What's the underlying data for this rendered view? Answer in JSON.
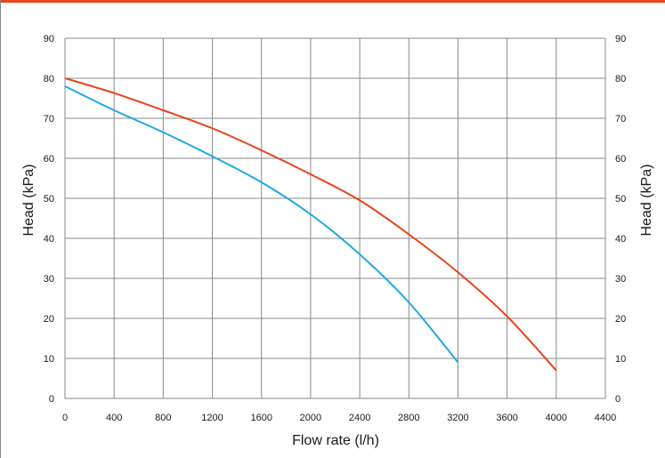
{
  "colors": {
    "accent_bar": "#e9431c",
    "grid": "#8a8a8a",
    "series_red": "#e9431c",
    "series_blue": "#1fa9e0"
  },
  "chart_data": {
    "type": "line",
    "xlabel": "Flow rate (l/h)",
    "ylabel": "Head (kPa)",
    "ylabel_right": "Head (kPa)",
    "xlim": [
      0,
      4400
    ],
    "ylim": [
      0,
      90
    ],
    "x_ticks": [
      "0",
      "400",
      "800",
      "1200",
      "1600",
      "2000",
      "2400",
      "2800",
      "3200",
      "3600",
      "4000",
      "4400"
    ],
    "y_ticks": [
      "0",
      "10",
      "20",
      "30",
      "40",
      "50",
      "60",
      "70",
      "80",
      "90"
    ],
    "grid": true,
    "series": [
      {
        "color": "#e9431c",
        "x": [
          0,
          400,
          800,
          1200,
          1600,
          2000,
          2400,
          2800,
          3200,
          3600,
          4000
        ],
        "y": [
          80,
          76.3,
          72,
          67.5,
          62,
          56,
          49.5,
          41,
          31.5,
          20.5,
          7
        ]
      },
      {
        "color": "#1fa9e0",
        "x": [
          0,
          400,
          800,
          1200,
          1600,
          2000,
          2400,
          2800,
          3200
        ],
        "y": [
          78,
          72,
          66.5,
          60.5,
          54,
          46,
          36,
          24,
          9
        ]
      }
    ]
  }
}
